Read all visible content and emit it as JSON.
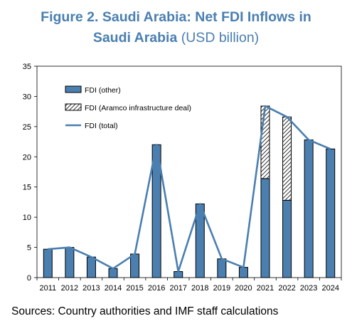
{
  "title": {
    "line1": "Figure 2. Saudi Arabia: Net FDI Inflows in",
    "line2_bold": "Saudi Arabia",
    "line2_rest": " (USD billion)"
  },
  "source": "Sources: Country authorities and IMF staff calculations",
  "colors": {
    "title": "#4a7fb0",
    "bar_fill": "#4a7fb0",
    "bar_stroke": "#000000",
    "line": "#4a7fb0"
  },
  "chart_data": {
    "type": "bar",
    "categories": [
      "2011",
      "2012",
      "2013",
      "2014",
      "2015",
      "2016",
      "2017",
      "2018",
      "2019",
      "2020",
      "2021",
      "2022",
      "2023",
      "2024"
    ],
    "series": [
      {
        "name": "FDI (other)",
        "kind": "bar",
        "pattern": "solid",
        "values": [
          4.7,
          5.0,
          3.4,
          1.5,
          3.9,
          22.0,
          1.0,
          12.2,
          3.1,
          1.7,
          16.4,
          12.8,
          22.8,
          21.3
        ]
      },
      {
        "name": "FDI (Aramco infrastructure deal)",
        "kind": "bar",
        "pattern": "hatched",
        "values": [
          0,
          0,
          0,
          0,
          0,
          0,
          0,
          0,
          0,
          0,
          12.0,
          13.8,
          0,
          0
        ]
      },
      {
        "name": "FDI (total)",
        "kind": "line",
        "values": [
          4.7,
          5.0,
          3.4,
          1.5,
          3.9,
          22.0,
          1.0,
          12.2,
          3.1,
          1.7,
          28.4,
          26.6,
          22.8,
          21.3
        ]
      }
    ],
    "ylim": [
      0,
      35
    ],
    "yticks": [
      0,
      5,
      10,
      15,
      20,
      25,
      30,
      35
    ],
    "grid": false,
    "legend_position": "top-left"
  }
}
